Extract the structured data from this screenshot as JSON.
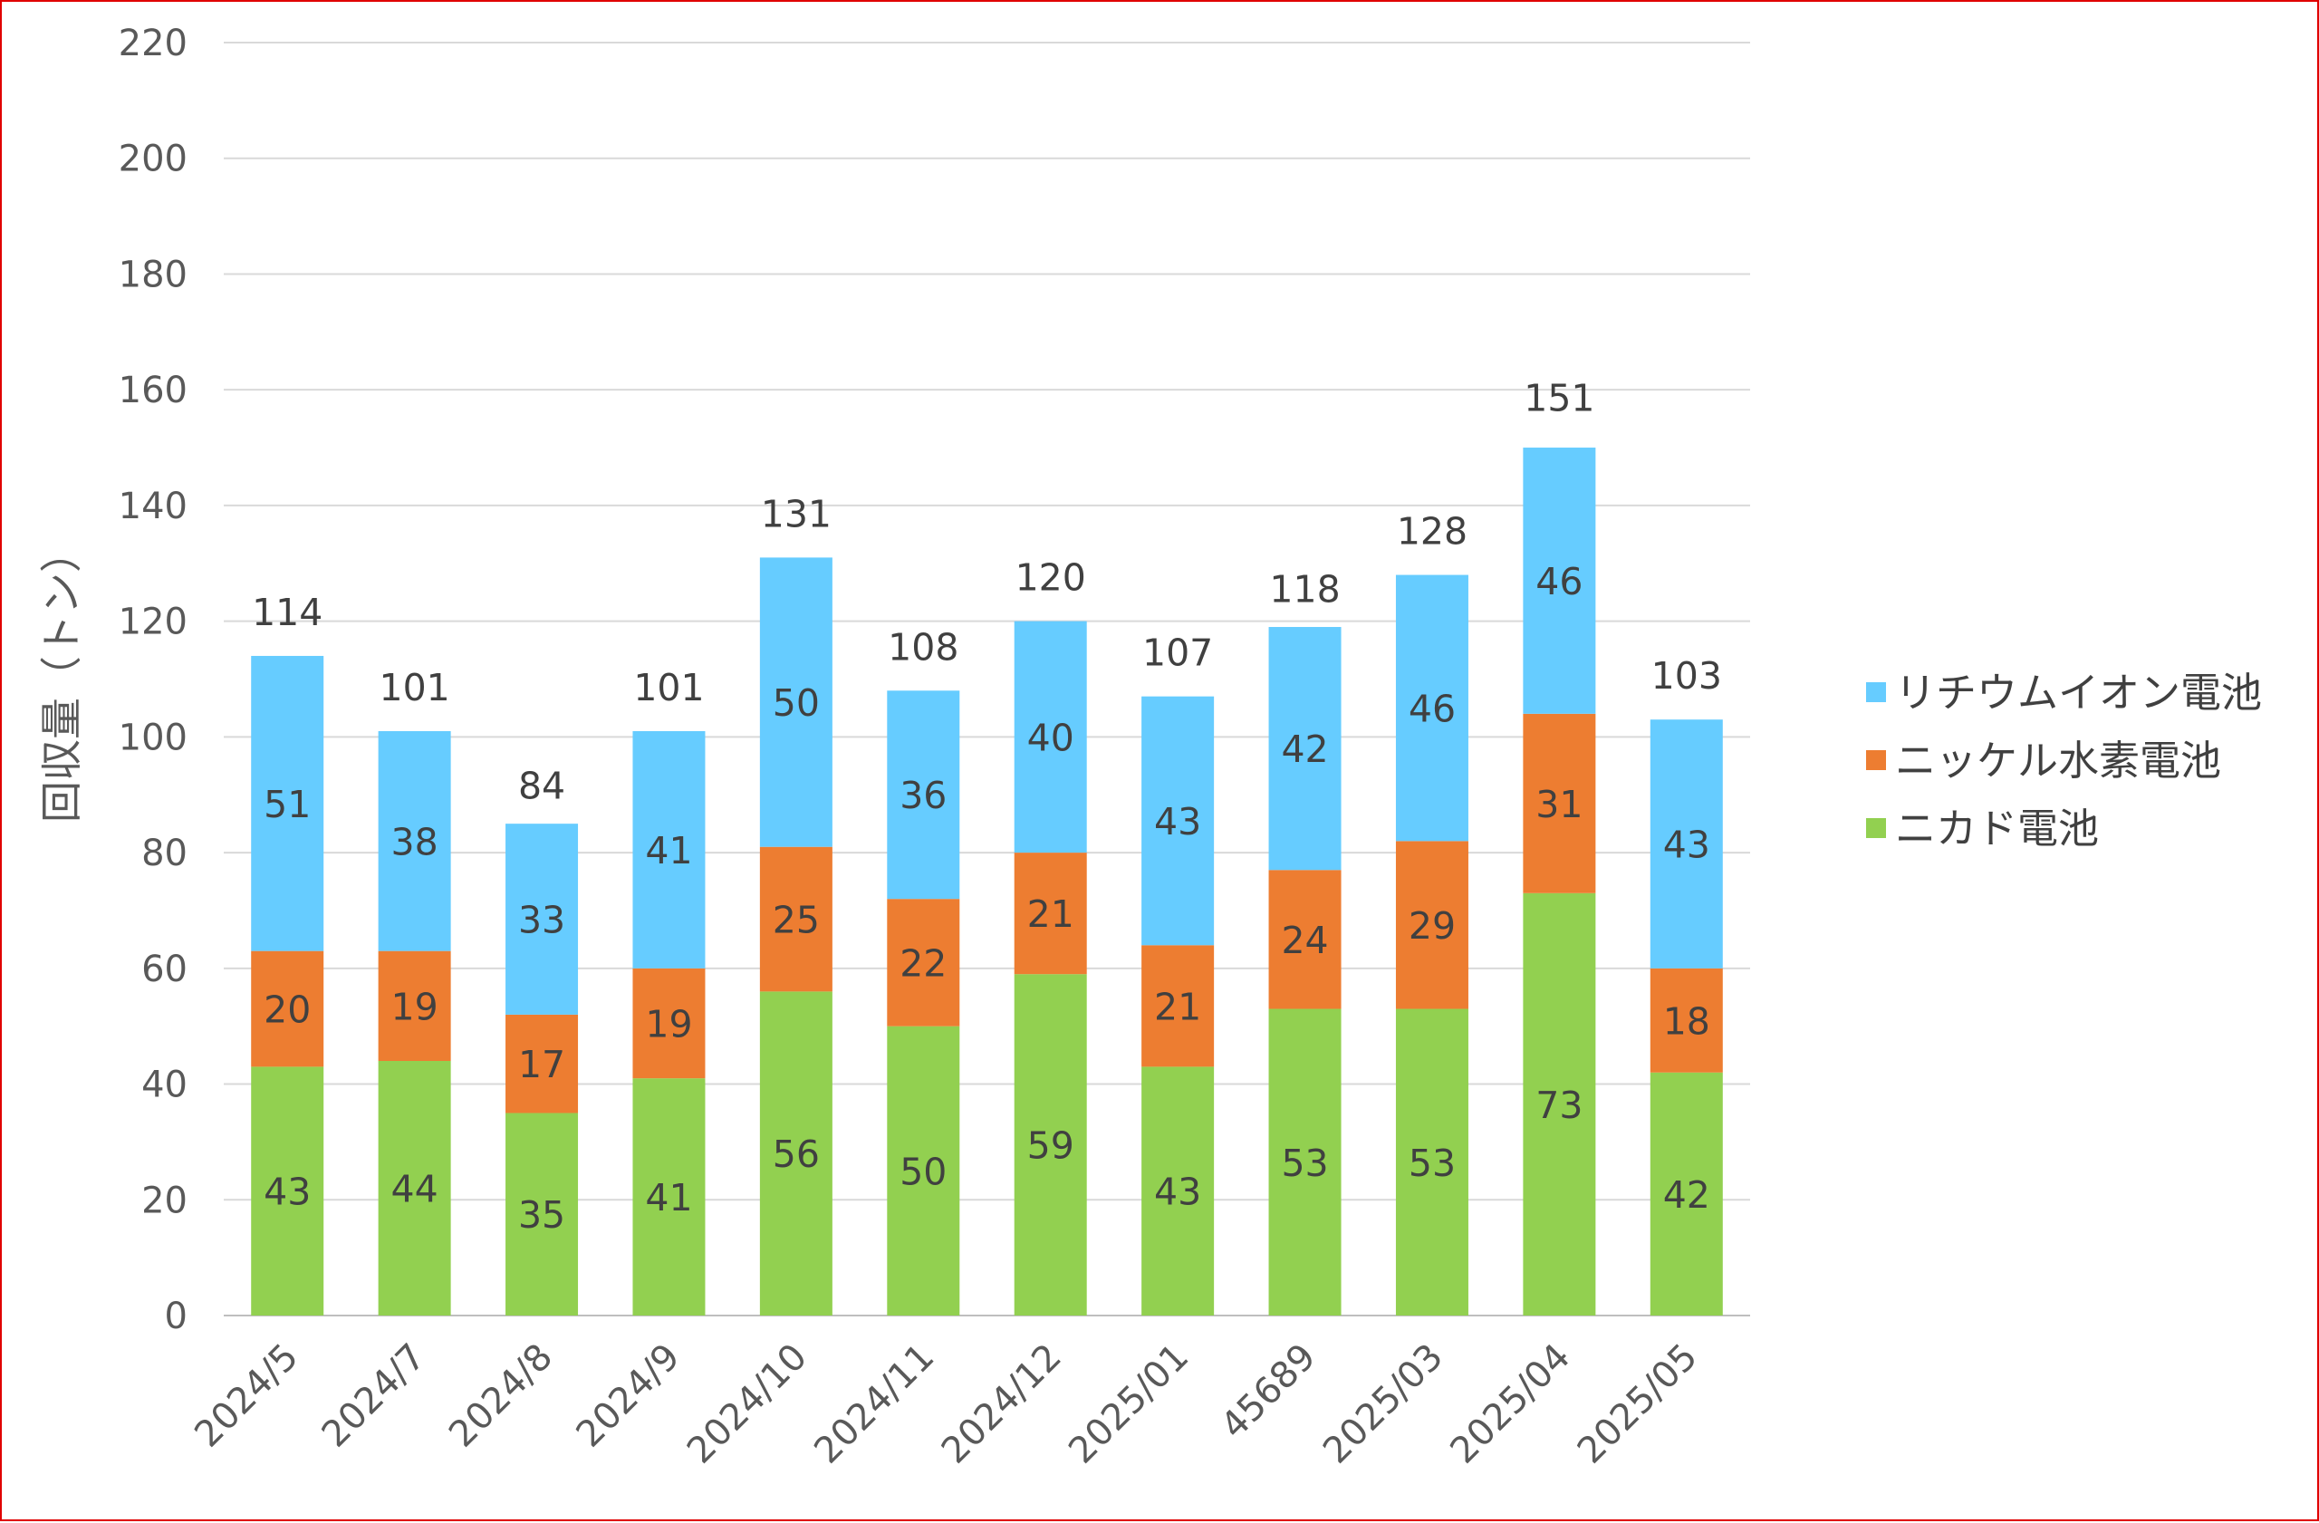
{
  "chart_data": {
    "type": "bar",
    "stacked": true,
    "categories": [
      "2024/5",
      "2024/7",
      "2024/8",
      "2024/9",
      "2024/10",
      "2024/11",
      "2024/12",
      "2025/01",
      "45689",
      "2025/03",
      "2025/04",
      "2025/05"
    ],
    "series": [
      {
        "name": "ニカド電池",
        "color": "#92d050",
        "values": [
          43,
          44,
          35,
          41,
          56,
          50,
          59,
          43,
          53,
          53,
          73,
          42
        ]
      },
      {
        "name": "ニッケル水素電池",
        "color": "#ed7d31",
        "values": [
          20,
          19,
          17,
          19,
          25,
          22,
          21,
          21,
          24,
          29,
          31,
          18
        ]
      },
      {
        "name": "リチウムイオン電池",
        "color": "#66ccff",
        "values": [
          51,
          38,
          33,
          41,
          50,
          36,
          40,
          43,
          42,
          46,
          46,
          43
        ]
      }
    ],
    "totals": [
      114,
      101,
      84,
      101,
      131,
      108,
      120,
      107,
      118,
      128,
      151,
      103
    ],
    "ylabel": "回収量（トン）",
    "xlabel": "",
    "ylim": [
      0,
      220
    ],
    "yticks": [
      0,
      20,
      40,
      60,
      80,
      100,
      120,
      140,
      160,
      180,
      200,
      220
    ],
    "grid": true,
    "legend_position": "right",
    "legend_order": [
      "リチウムイオン電池",
      "ニッケル水素電池",
      "ニカド電池"
    ]
  }
}
